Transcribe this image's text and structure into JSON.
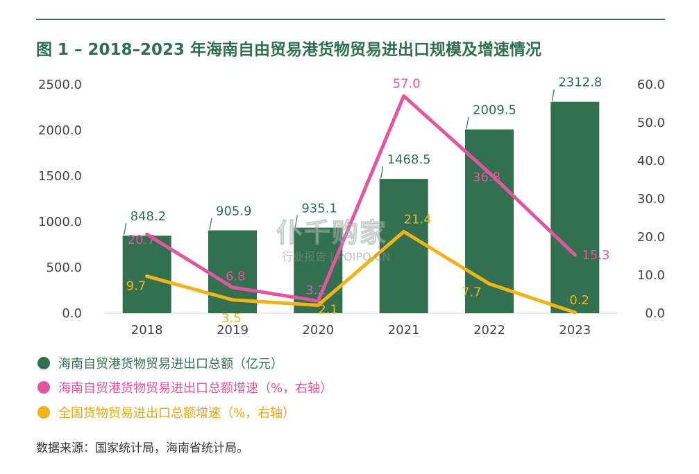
{
  "title": "图 1 – 2018–2023 年海南自由贸易港货物贸易进出口规模及增速情况",
  "source": "数据来源：国家统计局，海南省统计局。",
  "watermark": {
    "main": "仆千购家",
    "sub": "行业报告 | POIPO.CN"
  },
  "colors": {
    "accent": "#2f6e55",
    "bar": "#33704f",
    "pink": "#e2559f",
    "yellow": "#f1b416"
  },
  "chart_data": {
    "type": "bar+line",
    "categories": [
      "2018",
      "2019",
      "2020",
      "2021",
      "2022",
      "2023"
    ],
    "series": [
      {
        "name": "海南自贸港货物贸易进出口总额（亿元）",
        "type": "bar",
        "axis": "left",
        "values": [
          848.2,
          905.9,
          935.1,
          1468.5,
          2009.5,
          2312.8
        ],
        "labels": [
          "848.2",
          "905.9",
          "935.1",
          "1468.5",
          "2009.5",
          "2312.8"
        ],
        "color": "#33704f"
      },
      {
        "name": "海南自贸港货物贸易进出口总额增速（%，右轴）",
        "type": "line",
        "axis": "right",
        "values": [
          20.7,
          6.8,
          3.2,
          57.0,
          36.8,
          15.3
        ],
        "labels": [
          "20.7",
          "6.8",
          "3.2",
          "57.0",
          "36.8",
          "15.3"
        ],
        "color": "#e2559f"
      },
      {
        "name": "全国货物贸易进出口总额增速（%，右轴）",
        "type": "line",
        "axis": "right",
        "values": [
          9.7,
          3.5,
          2.1,
          21.4,
          7.7,
          0.2
        ],
        "labels": [
          "9.7",
          "3.5",
          "2.1",
          "21.4",
          "7.7",
          "0.2"
        ],
        "color": "#f1b416"
      }
    ],
    "y_left": {
      "min": 0,
      "max": 2500,
      "ticks": [
        "0.0",
        "500.0",
        "1000.0",
        "1500.0",
        "2000.0",
        "2500.0"
      ]
    },
    "y_right": {
      "min": 0,
      "max": 60,
      "ticks": [
        "0.0",
        "10.0",
        "20.0",
        "30.0",
        "40.0",
        "50.0",
        "60.0"
      ]
    },
    "grid": false,
    "legend_position": "bottom"
  }
}
